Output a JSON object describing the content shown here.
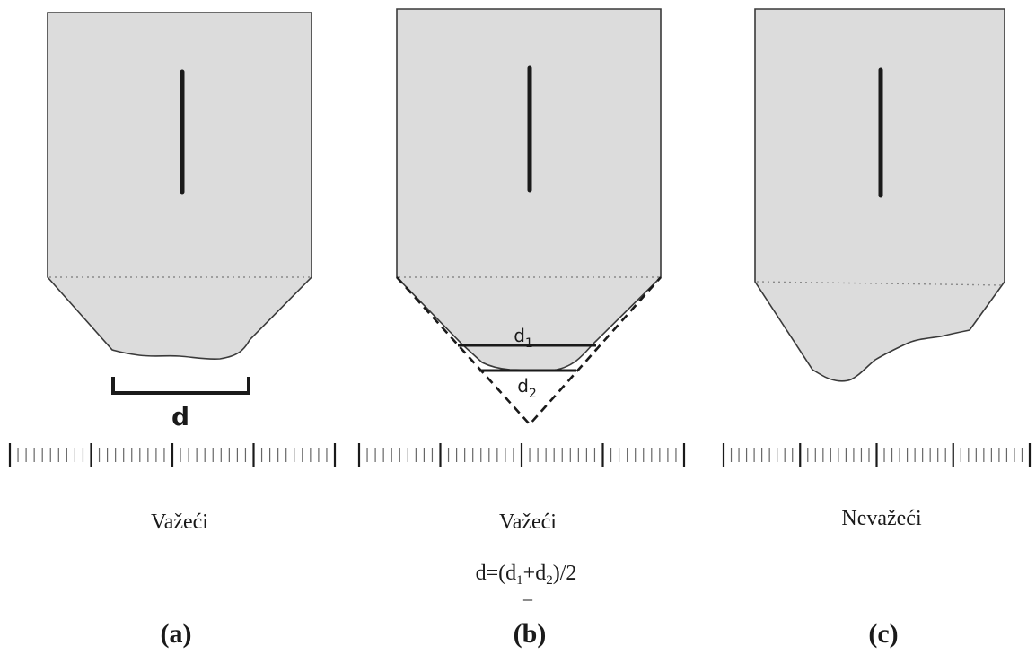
{
  "colors": {
    "specimen_fill": "#dcdcdc",
    "outline": "#3a3a3a",
    "mark": "#1a1a1a",
    "dotted": "#8a8a8a",
    "ruler": "#666666"
  },
  "panels": [
    {
      "id": "a",
      "status": "Važeći",
      "label": "(a)",
      "measure_label": "d"
    },
    {
      "id": "b",
      "status": "Važeći",
      "label": "(b)",
      "d1_base": "d",
      "d1_sub": "1",
      "d2_base": "d",
      "d2_sub": "2",
      "formula": {
        "p1": "d=(d",
        "s1": "1",
        "p2": "+d",
        "s2": "2",
        "p3": ")/2",
        "mark": "_"
      }
    },
    {
      "id": "c",
      "status": "Nevažeći",
      "label": "(c)"
    }
  ]
}
